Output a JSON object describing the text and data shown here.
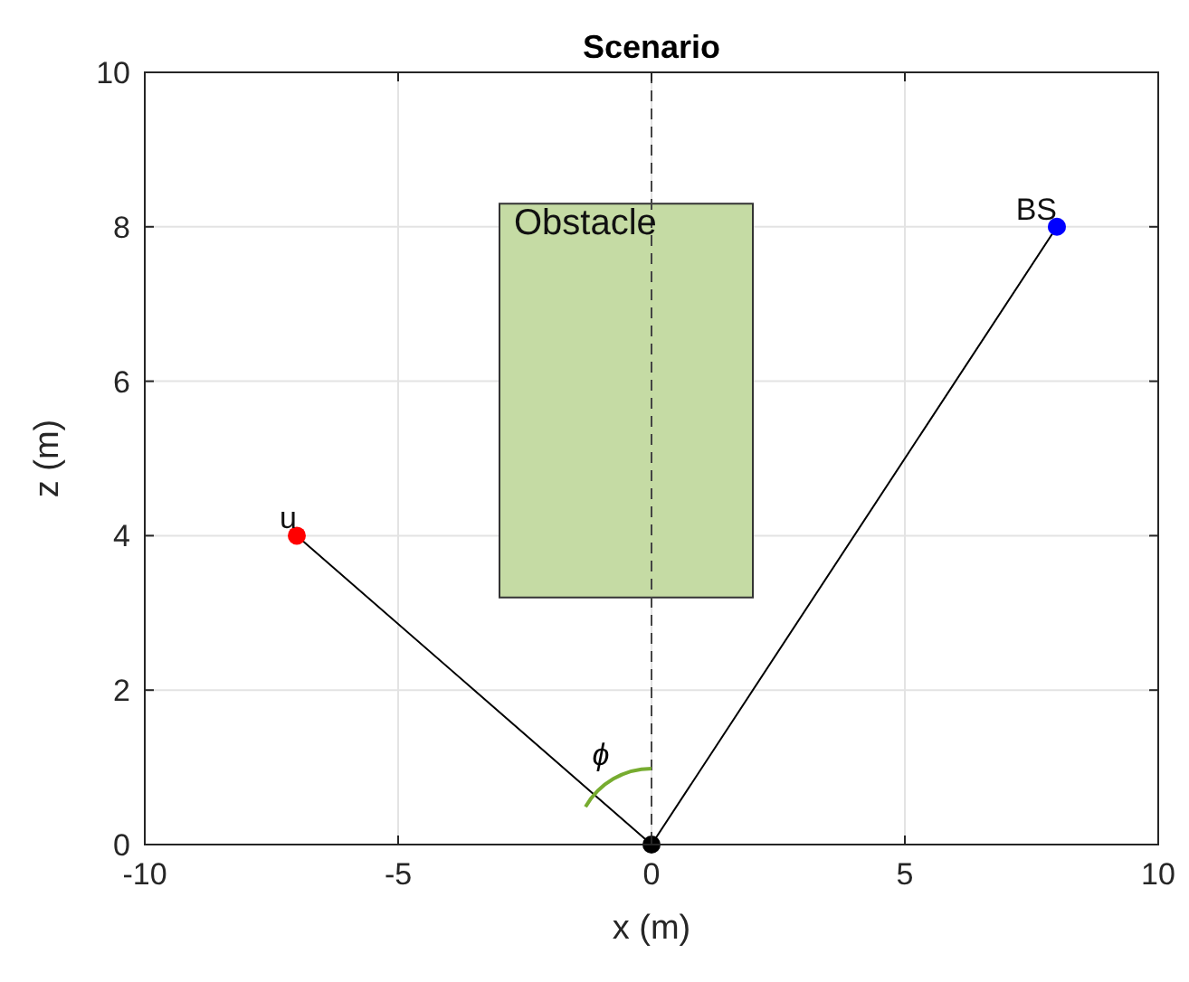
{
  "chart_data": {
    "type": "line",
    "title": "Scenario",
    "xlabel": "x (m)",
    "ylabel": "z (m)",
    "xlim": [
      -10,
      10
    ],
    "ylim": [
      0,
      10
    ],
    "xticks": [
      -10,
      -5,
      0,
      5,
      10
    ],
    "yticks": [
      0,
      2,
      4,
      6,
      8,
      10
    ],
    "grid": true,
    "series": [
      {
        "type": "area",
        "x": [
          -3,
          2,
          2,
          -3,
          -3
        ],
        "values": [
          3.2,
          3.2,
          8.3,
          8.3,
          3.2
        ],
        "color": "#c5dba4"
      },
      {
        "x": [
          -7,
          0,
          8
        ],
        "values": [
          4,
          0,
          8
        ],
        "color": "#000000"
      },
      {
        "type": "scatter",
        "x": [
          -7,
          0,
          8
        ],
        "values": [
          4,
          0,
          8
        ],
        "colors": [
          "#ff0000",
          "#000000",
          "#0000ff"
        ]
      }
    ],
    "ref_lines": [
      {
        "axis": "x",
        "value": 0,
        "line_style": "dashed",
        "color": "#444444"
      }
    ],
    "annotations": [
      {
        "text": "Obstacle",
        "x": -3,
        "y": 7.9
      },
      {
        "text": "u",
        "x": -7,
        "y": 4
      },
      {
        "text": "BS",
        "x": 8,
        "y": 8
      },
      "ϕ"
    ]
  }
}
